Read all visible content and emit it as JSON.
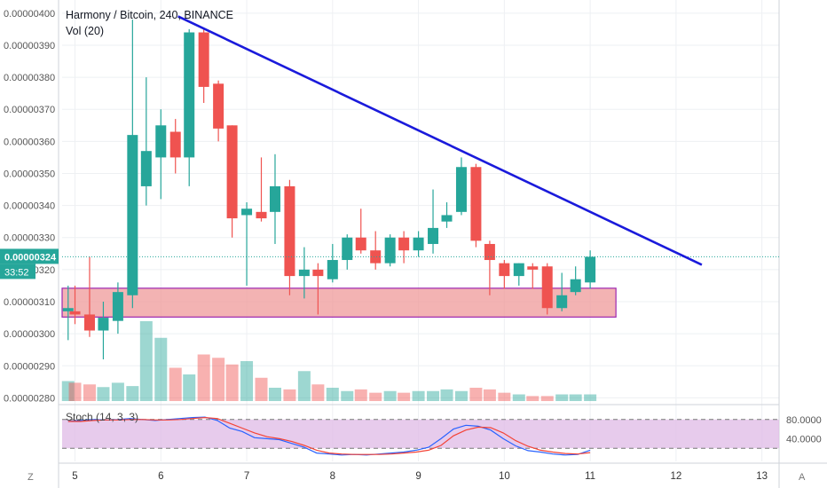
{
  "header": {
    "symbol": "Harmony / Bitcoin",
    "interval": "240",
    "exchange": "BINANCE",
    "title_line": "Harmony / Bitcoin, 240, BINANCE",
    "volume_label": "Vol (20)"
  },
  "price_badge": {
    "value": "0.00000324",
    "countdown": "33:52",
    "color": "#26a69a"
  },
  "stoch_label": "Stoch (14, 3, 3)",
  "corners": {
    "left": "Z",
    "right": "A"
  },
  "colors": {
    "up": "#26a69a",
    "down": "#ef5350",
    "trendline": "#1a1adb",
    "zone_fill": "#ef9a9a",
    "zone_border": "#9c27b0",
    "stoch_k": "#2962ff",
    "stoch_d": "#f44336",
    "stoch_bg": "#e1bee7"
  },
  "chart_data": [
    {
      "type": "candlestick",
      "title": "Harmony / Bitcoin, 240, BINANCE",
      "ylim": [
        2.79e-06,
        4.03e-06
      ],
      "y_ticks": [
        "0.00000400",
        "0.00000390",
        "0.00000380",
        "0.00000370",
        "0.00000360",
        "0.00000350",
        "0.00000340",
        "0.00000330",
        "0.00000320",
        "0.00000310",
        "0.00000300",
        "0.00000290",
        "0.00000280"
      ],
      "y_tick_values": [
        4e-06,
        3.9e-06,
        3.8e-06,
        3.7e-06,
        3.6e-06,
        3.5e-06,
        3.4e-06,
        3.3e-06,
        3.2e-06,
        3.1e-06,
        3e-06,
        2.9e-06,
        2.8e-06
      ],
      "x_ticks": [
        "5",
        "6",
        "7",
        "8",
        "9",
        "10",
        "11",
        "12",
        "13"
      ],
      "x_tick_values": [
        5,
        6,
        7,
        8,
        9,
        10,
        11,
        12,
        13
      ],
      "xlim": [
        4.85,
        13.2
      ],
      "grid": true,
      "candles": [
        {
          "t": 4.92,
          "o": 3.07,
          "h": 3.15,
          "l": 2.98,
          "c": 3.08
        },
        {
          "t": 5.0,
          "o": 3.07,
          "h": 3.15,
          "l": 3.03,
          "c": 3.06
        },
        {
          "t": 5.17,
          "o": 3.06,
          "h": 3.24,
          "l": 2.99,
          "c": 3.01
        },
        {
          "t": 5.33,
          "o": 3.01,
          "h": 3.1,
          "l": 2.92,
          "c": 3.05
        },
        {
          "t": 5.5,
          "o": 3.04,
          "h": 3.16,
          "l": 3.0,
          "c": 3.13
        },
        {
          "t": 5.67,
          "o": 3.12,
          "h": 3.98,
          "l": 3.08,
          "c": 3.62
        },
        {
          "t": 5.83,
          "o": 3.46,
          "h": 3.8,
          "l": 3.4,
          "c": 3.57
        },
        {
          "t": 6.0,
          "o": 3.55,
          "h": 3.7,
          "l": 3.42,
          "c": 3.65
        },
        {
          "t": 6.17,
          "o": 3.63,
          "h": 3.67,
          "l": 3.5,
          "c": 3.55
        },
        {
          "t": 6.33,
          "o": 3.55,
          "h": 3.95,
          "l": 3.46,
          "c": 3.94
        },
        {
          "t": 6.5,
          "o": 3.94,
          "h": 3.95,
          "l": 3.72,
          "c": 3.77
        },
        {
          "t": 6.67,
          "o": 3.78,
          "h": 3.79,
          "l": 3.6,
          "c": 3.64
        },
        {
          "t": 6.83,
          "o": 3.65,
          "h": 3.65,
          "l": 3.3,
          "c": 3.36
        },
        {
          "t": 7.0,
          "o": 3.37,
          "h": 3.41,
          "l": 3.15,
          "c": 3.39
        },
        {
          "t": 7.17,
          "o": 3.38,
          "h": 3.55,
          "l": 3.35,
          "c": 3.36
        },
        {
          "t": 7.33,
          "o": 3.38,
          "h": 3.56,
          "l": 3.28,
          "c": 3.46
        },
        {
          "t": 7.5,
          "o": 3.46,
          "h": 3.48,
          "l": 3.12,
          "c": 3.18
        },
        {
          "t": 7.67,
          "o": 3.18,
          "h": 3.27,
          "l": 3.11,
          "c": 3.2
        },
        {
          "t": 7.83,
          "o": 3.2,
          "h": 3.22,
          "l": 3.06,
          "c": 3.18
        },
        {
          "t": 8.0,
          "o": 3.17,
          "h": 3.28,
          "l": 3.16,
          "c": 3.23
        },
        {
          "t": 8.17,
          "o": 3.23,
          "h": 3.31,
          "l": 3.2,
          "c": 3.3
        },
        {
          "t": 8.33,
          "o": 3.3,
          "h": 3.39,
          "l": 3.25,
          "c": 3.26
        },
        {
          "t": 8.5,
          "o": 3.26,
          "h": 3.32,
          "l": 3.2,
          "c": 3.22
        },
        {
          "t": 8.67,
          "o": 3.22,
          "h": 3.31,
          "l": 3.21,
          "c": 3.3
        },
        {
          "t": 8.83,
          "o": 3.3,
          "h": 3.32,
          "l": 3.22,
          "c": 3.26
        },
        {
          "t": 9.0,
          "o": 3.26,
          "h": 3.32,
          "l": 3.24,
          "c": 3.3
        },
        {
          "t": 9.17,
          "o": 3.28,
          "h": 3.45,
          "l": 3.25,
          "c": 3.33
        },
        {
          "t": 9.33,
          "o": 3.35,
          "h": 3.41,
          "l": 3.33,
          "c": 3.37
        },
        {
          "t": 9.5,
          "o": 3.38,
          "h": 3.55,
          "l": 3.37,
          "c": 3.52
        },
        {
          "t": 9.67,
          "o": 3.52,
          "h": 3.53,
          "l": 3.27,
          "c": 3.29
        },
        {
          "t": 9.83,
          "o": 3.28,
          "h": 3.29,
          "l": 3.12,
          "c": 3.23
        },
        {
          "t": 10.0,
          "o": 3.22,
          "h": 3.23,
          "l": 3.14,
          "c": 3.18
        },
        {
          "t": 10.17,
          "o": 3.18,
          "h": 3.22,
          "l": 3.15,
          "c": 3.22
        },
        {
          "t": 10.33,
          "o": 3.21,
          "h": 3.22,
          "l": 3.14,
          "c": 3.2
        },
        {
          "t": 10.5,
          "o": 3.21,
          "h": 3.22,
          "l": 3.06,
          "c": 3.08
        },
        {
          "t": 10.67,
          "o": 3.08,
          "h": 3.19,
          "l": 3.07,
          "c": 3.12
        },
        {
          "t": 10.83,
          "o": 3.13,
          "h": 3.21,
          "l": 3.12,
          "c": 3.17
        },
        {
          "t": 11.0,
          "o": 3.16,
          "h": 3.26,
          "l": 3.14,
          "c": 3.24
        }
      ],
      "price_scale": "1e-6",
      "trendline": {
        "x": [
          6.2,
          12.3
        ],
        "y": [
          3.99e-06,
          3.215e-06
        ]
      },
      "zone": {
        "x": [
          4.85,
          11.3
        ],
        "y": [
          3.052e-06,
          3.142e-06
        ]
      },
      "last_price_line": 3.24e-06
    },
    {
      "type": "bar",
      "title": "Vol (20)",
      "values": [
        0.6,
        0.55,
        0.5,
        0.42,
        0.55,
        0.45,
        2.4,
        1.9,
        1.0,
        0.8,
        1.4,
        1.3,
        1.1,
        1.2,
        0.7,
        0.4,
        0.35,
        0.9,
        0.5,
        0.4,
        0.3,
        0.35,
        0.25,
        0.3,
        0.25,
        0.3,
        0.3,
        0.35,
        0.3,
        0.4,
        0.35,
        0.25,
        0.2,
        0.15,
        0.15,
        0.2,
        0.2,
        0.2
      ]
    },
    {
      "type": "line",
      "title": "Stoch (14, 3, 3)",
      "y_ticks": [
        "80.0000",
        "40.0000"
      ],
      "y_tick_values": [
        80,
        40
      ],
      "ylim": [
        0,
        100
      ],
      "band": [
        20,
        80
      ],
      "series": [
        {
          "values": [
            76,
            78,
            80,
            79,
            80,
            82,
            80,
            78,
            80,
            82,
            84,
            85,
            78,
            62,
            55,
            42,
            40,
            38,
            30,
            22,
            10,
            8,
            6,
            7,
            6,
            8,
            10,
            12,
            16,
            22,
            40,
            60,
            68,
            66,
            58,
            40,
            25,
            15,
            12,
            8,
            6,
            7,
            16
          ]
        },
        {
          "values": [
            76,
            76,
            78,
            79,
            79,
            80,
            80,
            79,
            79,
            80,
            82,
            84,
            82,
            72,
            62,
            52,
            44,
            40,
            34,
            26,
            16,
            10,
            8,
            7,
            7,
            7,
            8,
            10,
            12,
            16,
            26,
            46,
            58,
            64,
            63,
            52,
            36,
            24,
            16,
            12,
            9,
            8,
            11
          ]
        }
      ]
    }
  ]
}
